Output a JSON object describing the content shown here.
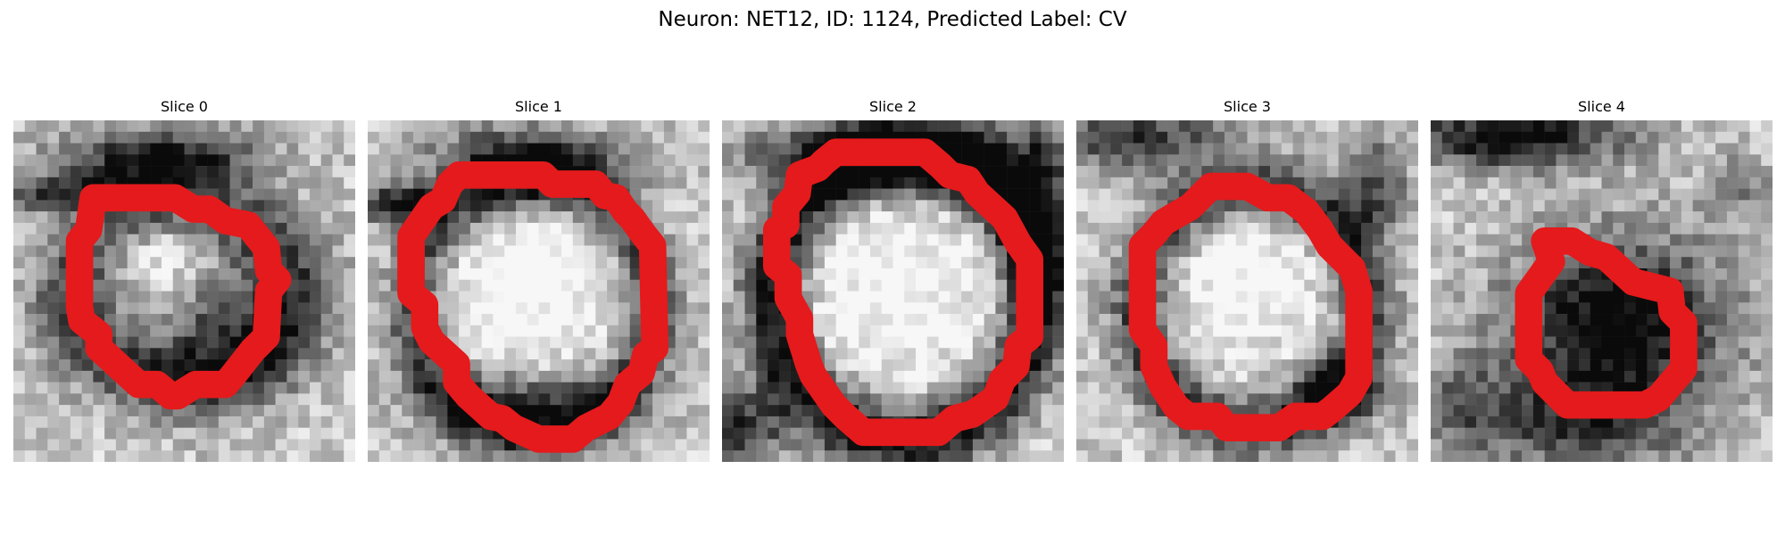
{
  "figure": {
    "title": "Neuron: NET12, ID: 1124, Predicted Label: CV",
    "outline_color": "#e41a1c",
    "colormap": "gray"
  },
  "slices": [
    {
      "title": "Slice 0"
    },
    {
      "title": "Slice 1"
    },
    {
      "title": "Slice 2"
    },
    {
      "title": "Slice 3"
    },
    {
      "title": "Slice 4"
    }
  ]
}
